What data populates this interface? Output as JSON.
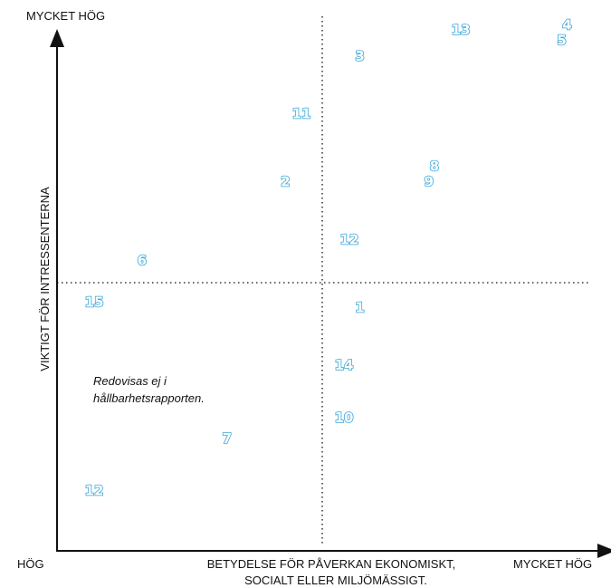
{
  "chart_data": {
    "type": "scatter",
    "y_top_label": "MYCKET HÖG",
    "y_axis_title": "VIKTIGT FÖR INTRESSENTERNA",
    "x_left_label": "HÖG",
    "x_right_label": "MYCKET HÖG",
    "x_axis_title": [
      "BETYDELSE FÖR PÅVERKAN EKONOMISKT,",
      "SOCIALT ELLER MILJÖMÄSSIGT."
    ],
    "annotation": [
      "Redovisas ej i",
      "hållbarhetsrapporten."
    ],
    "points": [
      {
        "label": "13",
        "x": 76,
        "y": 98
      },
      {
        "label": "4",
        "x": 96,
        "y": 99
      },
      {
        "label": "5",
        "x": 95,
        "y": 96
      },
      {
        "label": "3",
        "x": 57,
        "y": 93
      },
      {
        "label": "11",
        "x": 46,
        "y": 82
      },
      {
        "label": "8",
        "x": 71,
        "y": 72
      },
      {
        "label": "9",
        "x": 70,
        "y": 69
      },
      {
        "label": "2",
        "x": 43,
        "y": 69
      },
      {
        "label": "12",
        "x": 55,
        "y": 58
      },
      {
        "label": "6",
        "x": 16,
        "y": 54
      },
      {
        "label": "15",
        "x": 7,
        "y": 46
      },
      {
        "label": "1",
        "x": 57,
        "y": 45
      },
      {
        "label": "14",
        "x": 54,
        "y": 34
      },
      {
        "label": "10",
        "x": 54,
        "y": 24
      },
      {
        "label": "7",
        "x": 32,
        "y": 20
      },
      {
        "label": "12",
        "x": 7,
        "y": 10
      }
    ],
    "xlim": [
      0,
      100
    ],
    "ylim": [
      0,
      100
    ],
    "quadrant_dividers": {
      "x": 50,
      "y": 50
    },
    "colors": {
      "points": "#3aa6d8",
      "axes": "#111111"
    }
  }
}
